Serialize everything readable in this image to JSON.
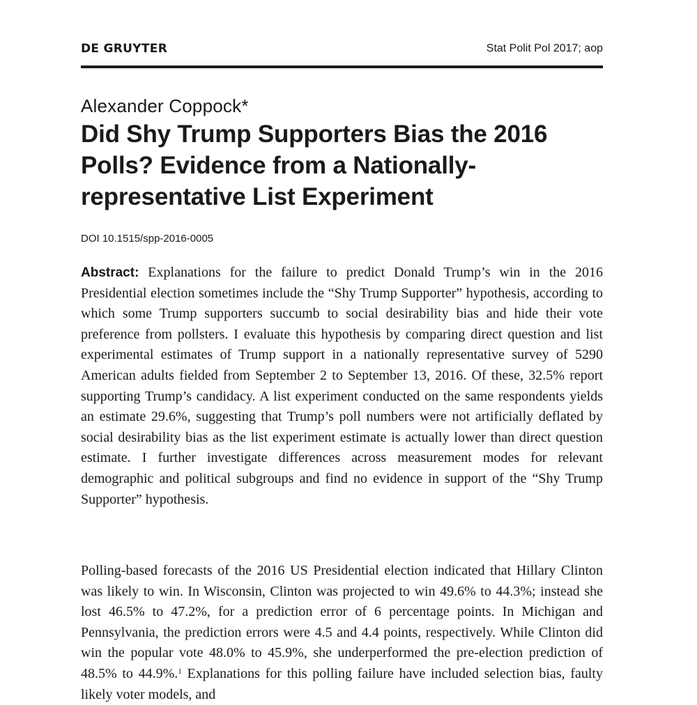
{
  "header": {
    "publisher": "DE GRUYTER",
    "journal": "Stat Polit Pol 2017; aop"
  },
  "article": {
    "author": "Alexander Coppock*",
    "title": "Did Shy Trump Supporters Bias the 2016 Polls? Evidence from a Nationally-representative List Experiment",
    "doi": "DOI 10.1515/spp-2016-0005",
    "abstract_label": "Abstract:",
    "abstract_text": "Explanations for the failure to predict Donald Trump’s win in the 2016 Presidential election sometimes include the “Shy Trump Supporter” hypothesis, according to which some Trump supporters succumb to social desirability bias and hide their vote preference from pollsters. I evaluate this hypothesis by com­paring direct question and list experimental estimates of Trump support in a nationally representative survey of 5290 American adults fielded from September 2 to September 13, 2016. Of these, 32.5% report supporting Trump’s candidacy. A list experiment conducted on the same respondents yields an estimate 29.6%, suggesting that Trump’s poll numbers were not artificially deflated by social desir­ability bias as the list experiment estimate is actually lower than direct question estimate. I further investigate differences across measurement modes for relevant demographic and political subgroups and find no evidence in support of the “Shy Trump Supporter” hypothesis.",
    "intro_text_before_note": "Polling-based forecasts of the 2016 US Presidential election indicated that Hillary Clinton was likely to win. In Wisconsin, Clinton was projected to win 49.6% to 44.3%; instead she lost 46.5% to 47.2%, for a prediction error of 6 percentage points. In Michigan and Pennsylvania, the prediction errors were 4.5 and 4.4 points, respectively. While Clinton did win the popular vote 48.0% to 45.9%, she underperformed the pre-election prediction of 48.5% to 44.9%.",
    "intro_footnote_marker": "1",
    "intro_text_after_note": " Explanations for this polling failure have included selection bias, faulty likely voter models, and"
  }
}
